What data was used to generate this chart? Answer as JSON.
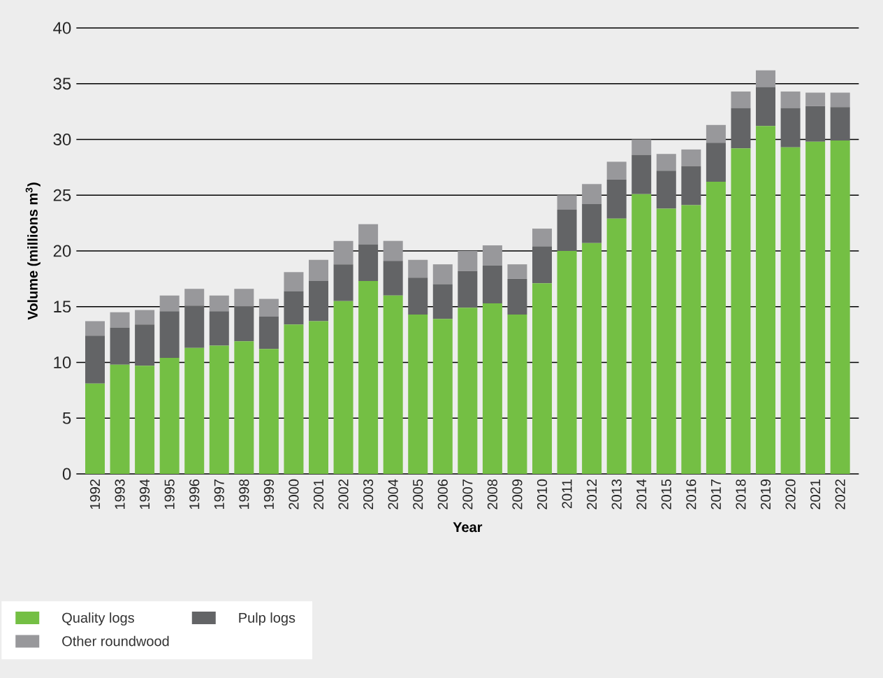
{
  "chart_data": {
    "type": "bar",
    "stacked": true,
    "xlabel": "Year",
    "ylabel": "Volume (millions m$^{3}$)",
    "categories": [
      "1992",
      "1993",
      "1994",
      "1995",
      "1996",
      "1997",
      "1998",
      "1999",
      "2000",
      "2001",
      "2002",
      "2003",
      "2004",
      "2005",
      "2006",
      "2007",
      "2008",
      "2009",
      "2010",
      "2011",
      "2012",
      "2013",
      "2014",
      "2015",
      "2016",
      "2017",
      "2018",
      "2019",
      "2020",
      "2021",
      "2022"
    ],
    "series": [
      {
        "name": "Quality logs",
        "color": "#74bf44",
        "values": [
          8.1,
          9.8,
          9.7,
          10.4,
          11.3,
          11.5,
          11.9,
          11.2,
          13.4,
          13.7,
          15.5,
          17.3,
          16.0,
          14.3,
          13.9,
          14.9,
          15.3,
          14.3,
          17.1,
          20.0,
          20.7,
          22.9,
          25.1,
          23.8,
          24.1,
          26.2,
          29.2,
          31.2,
          29.3,
          29.8,
          29.9
        ]
      },
      {
        "name": "Pulp logs",
        "color": "#636466",
        "values": [
          4.3,
          3.3,
          3.7,
          4.2,
          3.8,
          3.1,
          3.1,
          2.9,
          3.0,
          3.6,
          3.3,
          3.3,
          3.1,
          3.3,
          3.1,
          3.3,
          3.4,
          3.2,
          3.3,
          3.7,
          3.5,
          3.5,
          3.5,
          3.4,
          3.5,
          3.5,
          3.6,
          3.5,
          3.5,
          3.2,
          3.0
        ]
      },
      {
        "name": "Other roundwood",
        "color": "#98989b",
        "values": [
          1.3,
          1.4,
          1.3,
          1.4,
          1.5,
          1.4,
          1.6,
          1.6,
          1.7,
          1.9,
          2.1,
          1.8,
          1.8,
          1.6,
          1.8,
          1.8,
          1.8,
          1.3,
          1.6,
          1.3,
          1.8,
          1.6,
          1.4,
          1.5,
          1.5,
          1.6,
          1.5,
          1.5,
          1.5,
          1.2,
          1.3
        ]
      }
    ],
    "ylim": [
      0,
      40
    ],
    "yticks": [
      0,
      5,
      10,
      15,
      20,
      25,
      30,
      35,
      40
    ],
    "grid": "y",
    "legend": "bottom"
  }
}
